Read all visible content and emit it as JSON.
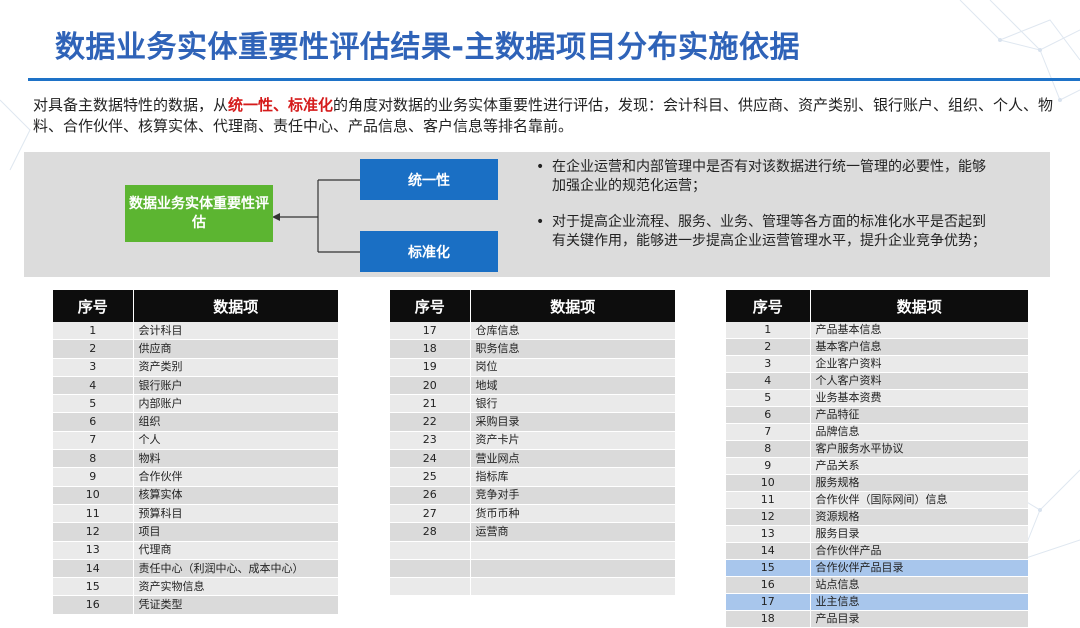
{
  "title": "数据业务实体重要性评估结果-主数据项目分布实施依据",
  "intro": {
    "p1": "对具备主数据特性的数据，从",
    "highlight": "统一性、标准化",
    "p2": "的角度对数据的业务实体重要性进行评估，发现：会计科目、供应商、资产类别、银行账户、组织、个人、物料、合作伙伴、核算实体、代理商、责任中心、产品信息、客户信息等排名靠前。"
  },
  "diagram": {
    "center": "数据业务实体重要性评估",
    "box1": "统一性",
    "box2": "标准化",
    "bullet1": "在企业运营和内部管理中是否有对该数据进行统一管理的必要性，能够加强企业的规范化运营；",
    "bullet2": "对于提高企业流程、服务、业务、管理等各方面的标准化水平是否起到有关键作用，能够进一步提高企业运营管理水平，提升企业竞争优势；"
  },
  "colors": {
    "title": "#2f63b8",
    "accent_line": "#1e72c7",
    "highlight": "#d51b1b",
    "green": "#5cb531",
    "blue": "#1a6fc4",
    "header": "#0d0d0d",
    "selected_row": "#a8c6ec"
  },
  "tables": {
    "header_no": "序号",
    "header_item": "数据项",
    "t1": [
      [
        "1",
        "会计科目"
      ],
      [
        "2",
        "供应商"
      ],
      [
        "3",
        "资产类别"
      ],
      [
        "4",
        "银行账户"
      ],
      [
        "5",
        "内部账户"
      ],
      [
        "6",
        "组织"
      ],
      [
        "7",
        "个人"
      ],
      [
        "8",
        "物料"
      ],
      [
        "9",
        "合作伙伴"
      ],
      [
        "10",
        "核算实体"
      ],
      [
        "11",
        "预算科目"
      ],
      [
        "12",
        "项目"
      ],
      [
        "13",
        "代理商"
      ],
      [
        "14",
        "责任中心（利润中心、成本中心）"
      ],
      [
        "15",
        "资产实物信息"
      ],
      [
        "16",
        "凭证类型"
      ]
    ],
    "t2": [
      [
        "17",
        "仓库信息"
      ],
      [
        "18",
        "职务信息"
      ],
      [
        "19",
        "岗位"
      ],
      [
        "20",
        "地域"
      ],
      [
        "21",
        "银行"
      ],
      [
        "22",
        "采购目录"
      ],
      [
        "23",
        "资产卡片"
      ],
      [
        "24",
        "营业网点"
      ],
      [
        "25",
        "指标库"
      ],
      [
        "26",
        "竞争对手"
      ],
      [
        "27",
        "货币币种"
      ],
      [
        "28",
        "运营商"
      ],
      [
        "",
        ""
      ],
      [
        "",
        ""
      ],
      [
        "",
        ""
      ]
    ],
    "t3": [
      [
        "1",
        "产品基本信息"
      ],
      [
        "2",
        "基本客户信息"
      ],
      [
        "3",
        "企业客户资料"
      ],
      [
        "4",
        "个人客户资料"
      ],
      [
        "5",
        "业务基本资费"
      ],
      [
        "6",
        "产品特征"
      ],
      [
        "7",
        "品牌信息"
      ],
      [
        "8",
        "客户服务水平协议"
      ],
      [
        "9",
        "产品关系"
      ],
      [
        "10",
        "服务规格"
      ],
      [
        "11",
        "合作伙伴（国际网间）信息"
      ],
      [
        "12",
        "资源规格"
      ],
      [
        "13",
        "服务目录"
      ],
      [
        "14",
        "合作伙伴产品"
      ],
      [
        "15",
        "合作伙伴产品目录"
      ],
      [
        "16",
        "站点信息"
      ],
      [
        "17",
        "业主信息"
      ],
      [
        "18",
        "产品目录"
      ]
    ],
    "t3_selected": [
      "15",
      "17"
    ]
  }
}
